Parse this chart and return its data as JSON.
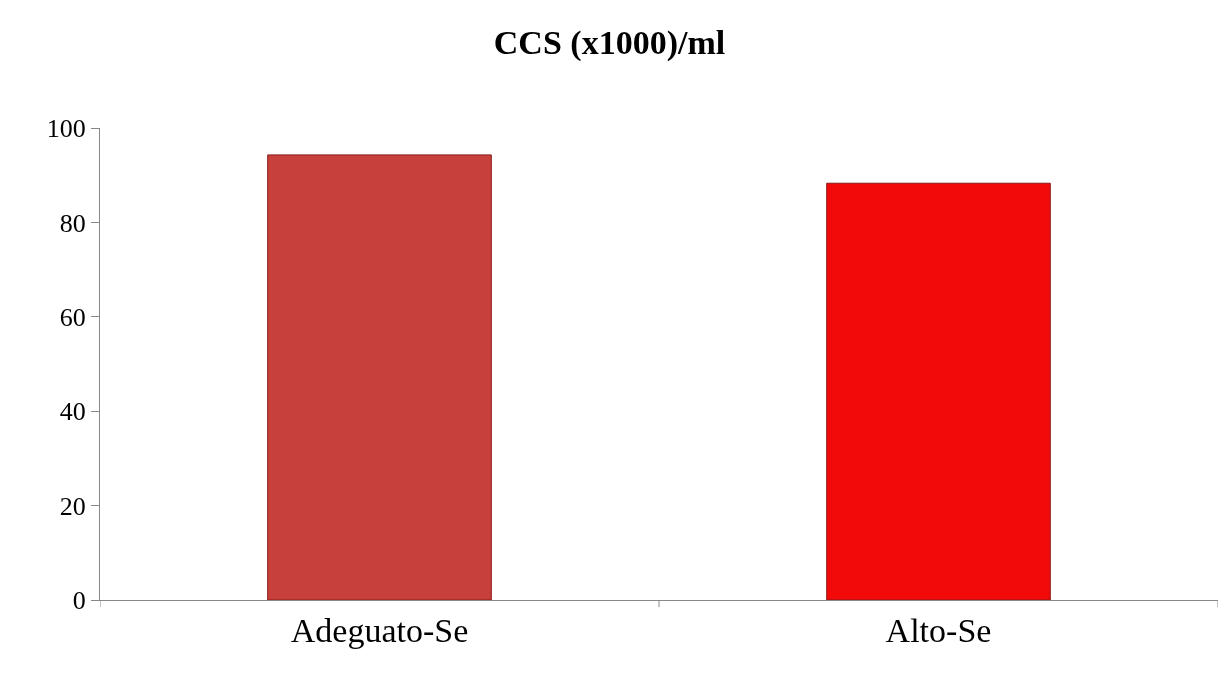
{
  "chart_data": {
    "type": "bar",
    "title": "CCS (x1000)/ml",
    "categories": [
      "Adeguato-Se",
      "Alto-Se"
    ],
    "values": [
      94.3,
      88.3
    ],
    "colors": [
      "#c8403b",
      "#f20a0a"
    ],
    "ylim": [
      0,
      100
    ],
    "yticks": [
      0,
      20,
      40,
      60,
      80,
      100
    ]
  }
}
